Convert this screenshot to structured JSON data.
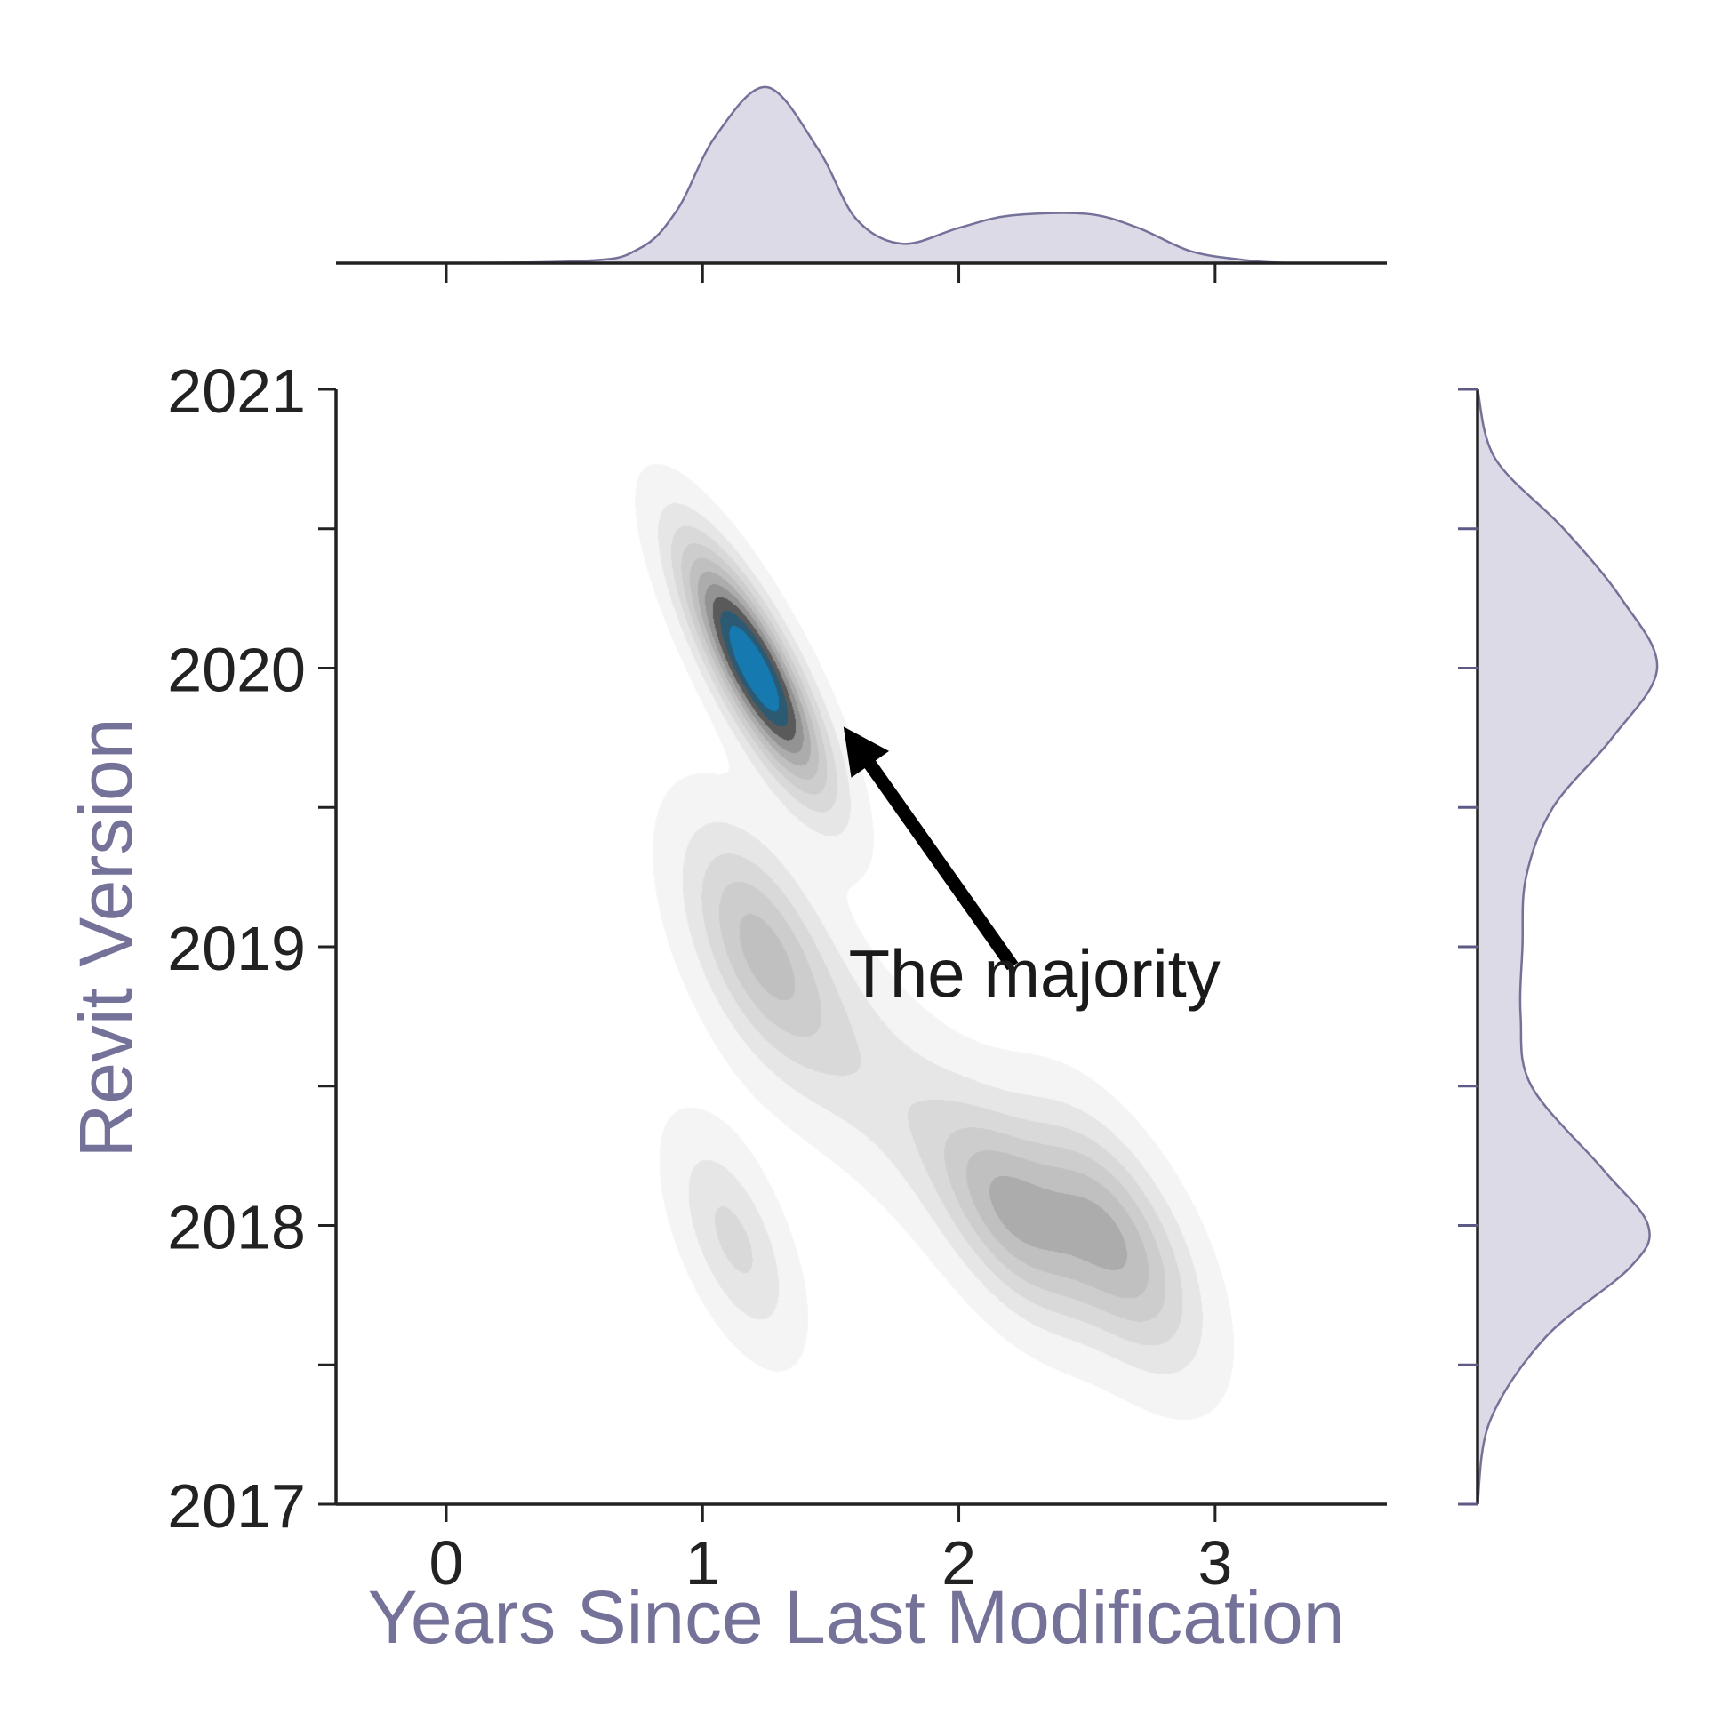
{
  "chart_data": {
    "type": "kde-joint",
    "x_label": "Years Since Last Modification",
    "y_label": "Revit Version",
    "x_ticks": [
      0,
      1,
      2,
      3
    ],
    "y_ticks": [
      2017,
      2018,
      2019,
      2020,
      2021
    ],
    "xlim": [
      -0.43,
      3.67
    ],
    "ylim": [
      2017,
      2021
    ],
    "annotation": {
      "text": "The majority",
      "text_at": {
        "x": 1.57,
        "y": 2018.82
      },
      "arrow_from": {
        "x": 2.21,
        "y": 2018.93
      },
      "arrow_to": {
        "x": 1.55,
        "y": 2019.79
      }
    },
    "density_levels": 10,
    "density_clusters": [
      {
        "x": 1.2,
        "y": 2020.0,
        "sx": 0.19,
        "sy": 0.3,
        "rho": -0.82,
        "weight": 1.0
      },
      {
        "x": 1.22,
        "y": 2019.0,
        "sx": 0.2,
        "sy": 0.3,
        "rho": -0.55,
        "weight": 0.42
      },
      {
        "x": 1.12,
        "y": 2017.95,
        "sx": 0.16,
        "sy": 0.26,
        "rho": -0.6,
        "weight": 0.26
      },
      {
        "x": 2.2,
        "y": 2018.05,
        "sx": 0.2,
        "sy": 0.26,
        "rho": -0.55,
        "weight": 0.45
      },
      {
        "x": 2.6,
        "y": 2017.95,
        "sx": 0.22,
        "sy": 0.3,
        "rho": -0.6,
        "weight": 0.5
      },
      {
        "x": 1.7,
        "y": 2018.5,
        "sx": 0.3,
        "sy": 0.35,
        "rho": -0.7,
        "weight": 0.18
      }
    ],
    "marginal_x": {
      "x": [
        -0.43,
        0.5,
        0.75,
        0.9,
        1.05,
        1.25,
        1.45,
        1.6,
        1.78,
        2.0,
        2.2,
        2.5,
        2.7,
        2.9,
        3.1,
        3.3,
        3.67
      ],
      "density": [
        0.0,
        0.01,
        0.08,
        0.3,
        0.72,
        1.0,
        0.65,
        0.25,
        0.11,
        0.2,
        0.27,
        0.28,
        0.2,
        0.07,
        0.02,
        0.0,
        0.0
      ]
    },
    "marginal_y": {
      "y": [
        2017.0,
        2017.3,
        2017.6,
        2017.85,
        2018.0,
        2018.2,
        2018.5,
        2018.75,
        2019.0,
        2019.25,
        2019.5,
        2019.75,
        2020.0,
        2020.25,
        2020.5,
        2020.75,
        2021.0
      ],
      "density": [
        0.0,
        0.07,
        0.38,
        0.85,
        0.95,
        0.7,
        0.3,
        0.24,
        0.25,
        0.27,
        0.42,
        0.75,
        1.0,
        0.8,
        0.48,
        0.1,
        0.0
      ]
    },
    "colors": {
      "marginal_fill": "#dcdae7",
      "marginal_line": "#75729a",
      "contour_shades": [
        "#f4f4f4",
        "#e6e6e6",
        "#d9d9d9",
        "#cdcdcd",
        "#c0c0c0",
        "#acacac",
        "#939393",
        "#5a5a5a",
        "#2b5a72",
        "#1679b0"
      ]
    }
  }
}
